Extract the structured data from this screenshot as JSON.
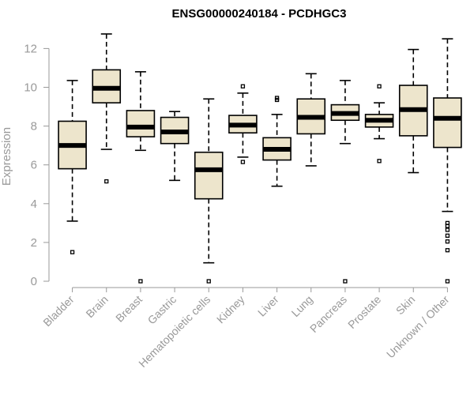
{
  "chart_data": {
    "type": "boxplot",
    "title": "ENSG00000240184 - PCDHGC3",
    "xlabel": "",
    "ylabel": "Expression",
    "ylim": [
      0,
      12.6
    ],
    "yticks": [
      0,
      2,
      4,
      6,
      8,
      10,
      12
    ],
    "categories": [
      "Bladder",
      "Brain",
      "Breast",
      "Gastric",
      "Hematopoietic cells",
      "Kidney",
      "Liver",
      "Lung",
      "Pancreas",
      "Prostate",
      "Skin",
      "Unknown / Other"
    ],
    "series": [
      {
        "name": "Bladder",
        "whisker_low": 3.1,
        "q1": 5.8,
        "median": 7.0,
        "q3": 8.25,
        "whisker_high": 10.35,
        "outliers": [
          1.5
        ]
      },
      {
        "name": "Brain",
        "whisker_low": 6.8,
        "q1": 9.2,
        "median": 9.95,
        "q3": 10.9,
        "whisker_high": 12.75,
        "outliers": [
          5.15
        ]
      },
      {
        "name": "Breast",
        "whisker_low": 6.75,
        "q1": 7.45,
        "median": 7.95,
        "q3": 8.8,
        "whisker_high": 10.8,
        "outliers": [
          0.0
        ]
      },
      {
        "name": "Gastric",
        "whisker_low": 5.2,
        "q1": 7.1,
        "median": 7.7,
        "q3": 8.45,
        "whisker_high": 8.75,
        "outliers": []
      },
      {
        "name": "Hematopoietic cells",
        "whisker_low": 0.95,
        "q1": 4.25,
        "median": 5.75,
        "q3": 6.65,
        "whisker_high": 9.4,
        "outliers": [
          0.0
        ]
      },
      {
        "name": "Kidney",
        "whisker_low": 6.4,
        "q1": 7.65,
        "median": 8.05,
        "q3": 8.55,
        "whisker_high": 9.7,
        "outliers": [
          10.05,
          6.15
        ]
      },
      {
        "name": "Liver",
        "whisker_low": 4.9,
        "q1": 6.25,
        "median": 6.8,
        "q3": 7.4,
        "whisker_high": 8.6,
        "outliers": [
          9.35,
          9.45
        ]
      },
      {
        "name": "Lung",
        "whisker_low": 5.95,
        "q1": 7.6,
        "median": 8.45,
        "q3": 9.4,
        "whisker_high": 10.7,
        "outliers": []
      },
      {
        "name": "Pancreas",
        "whisker_low": 7.1,
        "q1": 8.3,
        "median": 8.65,
        "q3": 9.1,
        "whisker_high": 10.35,
        "outliers": [
          0.0
        ]
      },
      {
        "name": "Prostate",
        "whisker_low": 7.35,
        "q1": 7.95,
        "median": 8.3,
        "q3": 8.6,
        "whisker_high": 9.2,
        "outliers": [
          10.05,
          6.2
        ]
      },
      {
        "name": "Skin",
        "whisker_low": 5.6,
        "q1": 7.5,
        "median": 8.85,
        "q3": 10.1,
        "whisker_high": 11.95,
        "outliers": []
      },
      {
        "name": "Unknown / Other",
        "whisker_low": 3.6,
        "q1": 6.9,
        "median": 8.4,
        "q3": 9.45,
        "whisker_high": 12.5,
        "outliers": [
          3.0,
          2.85,
          2.65,
          2.35,
          2.05,
          1.6,
          0.0
        ]
      }
    ],
    "colors": {
      "box_fill": "#ede5cc",
      "box_stroke": "#000000",
      "axis": "#999999",
      "title": "#000000"
    }
  }
}
